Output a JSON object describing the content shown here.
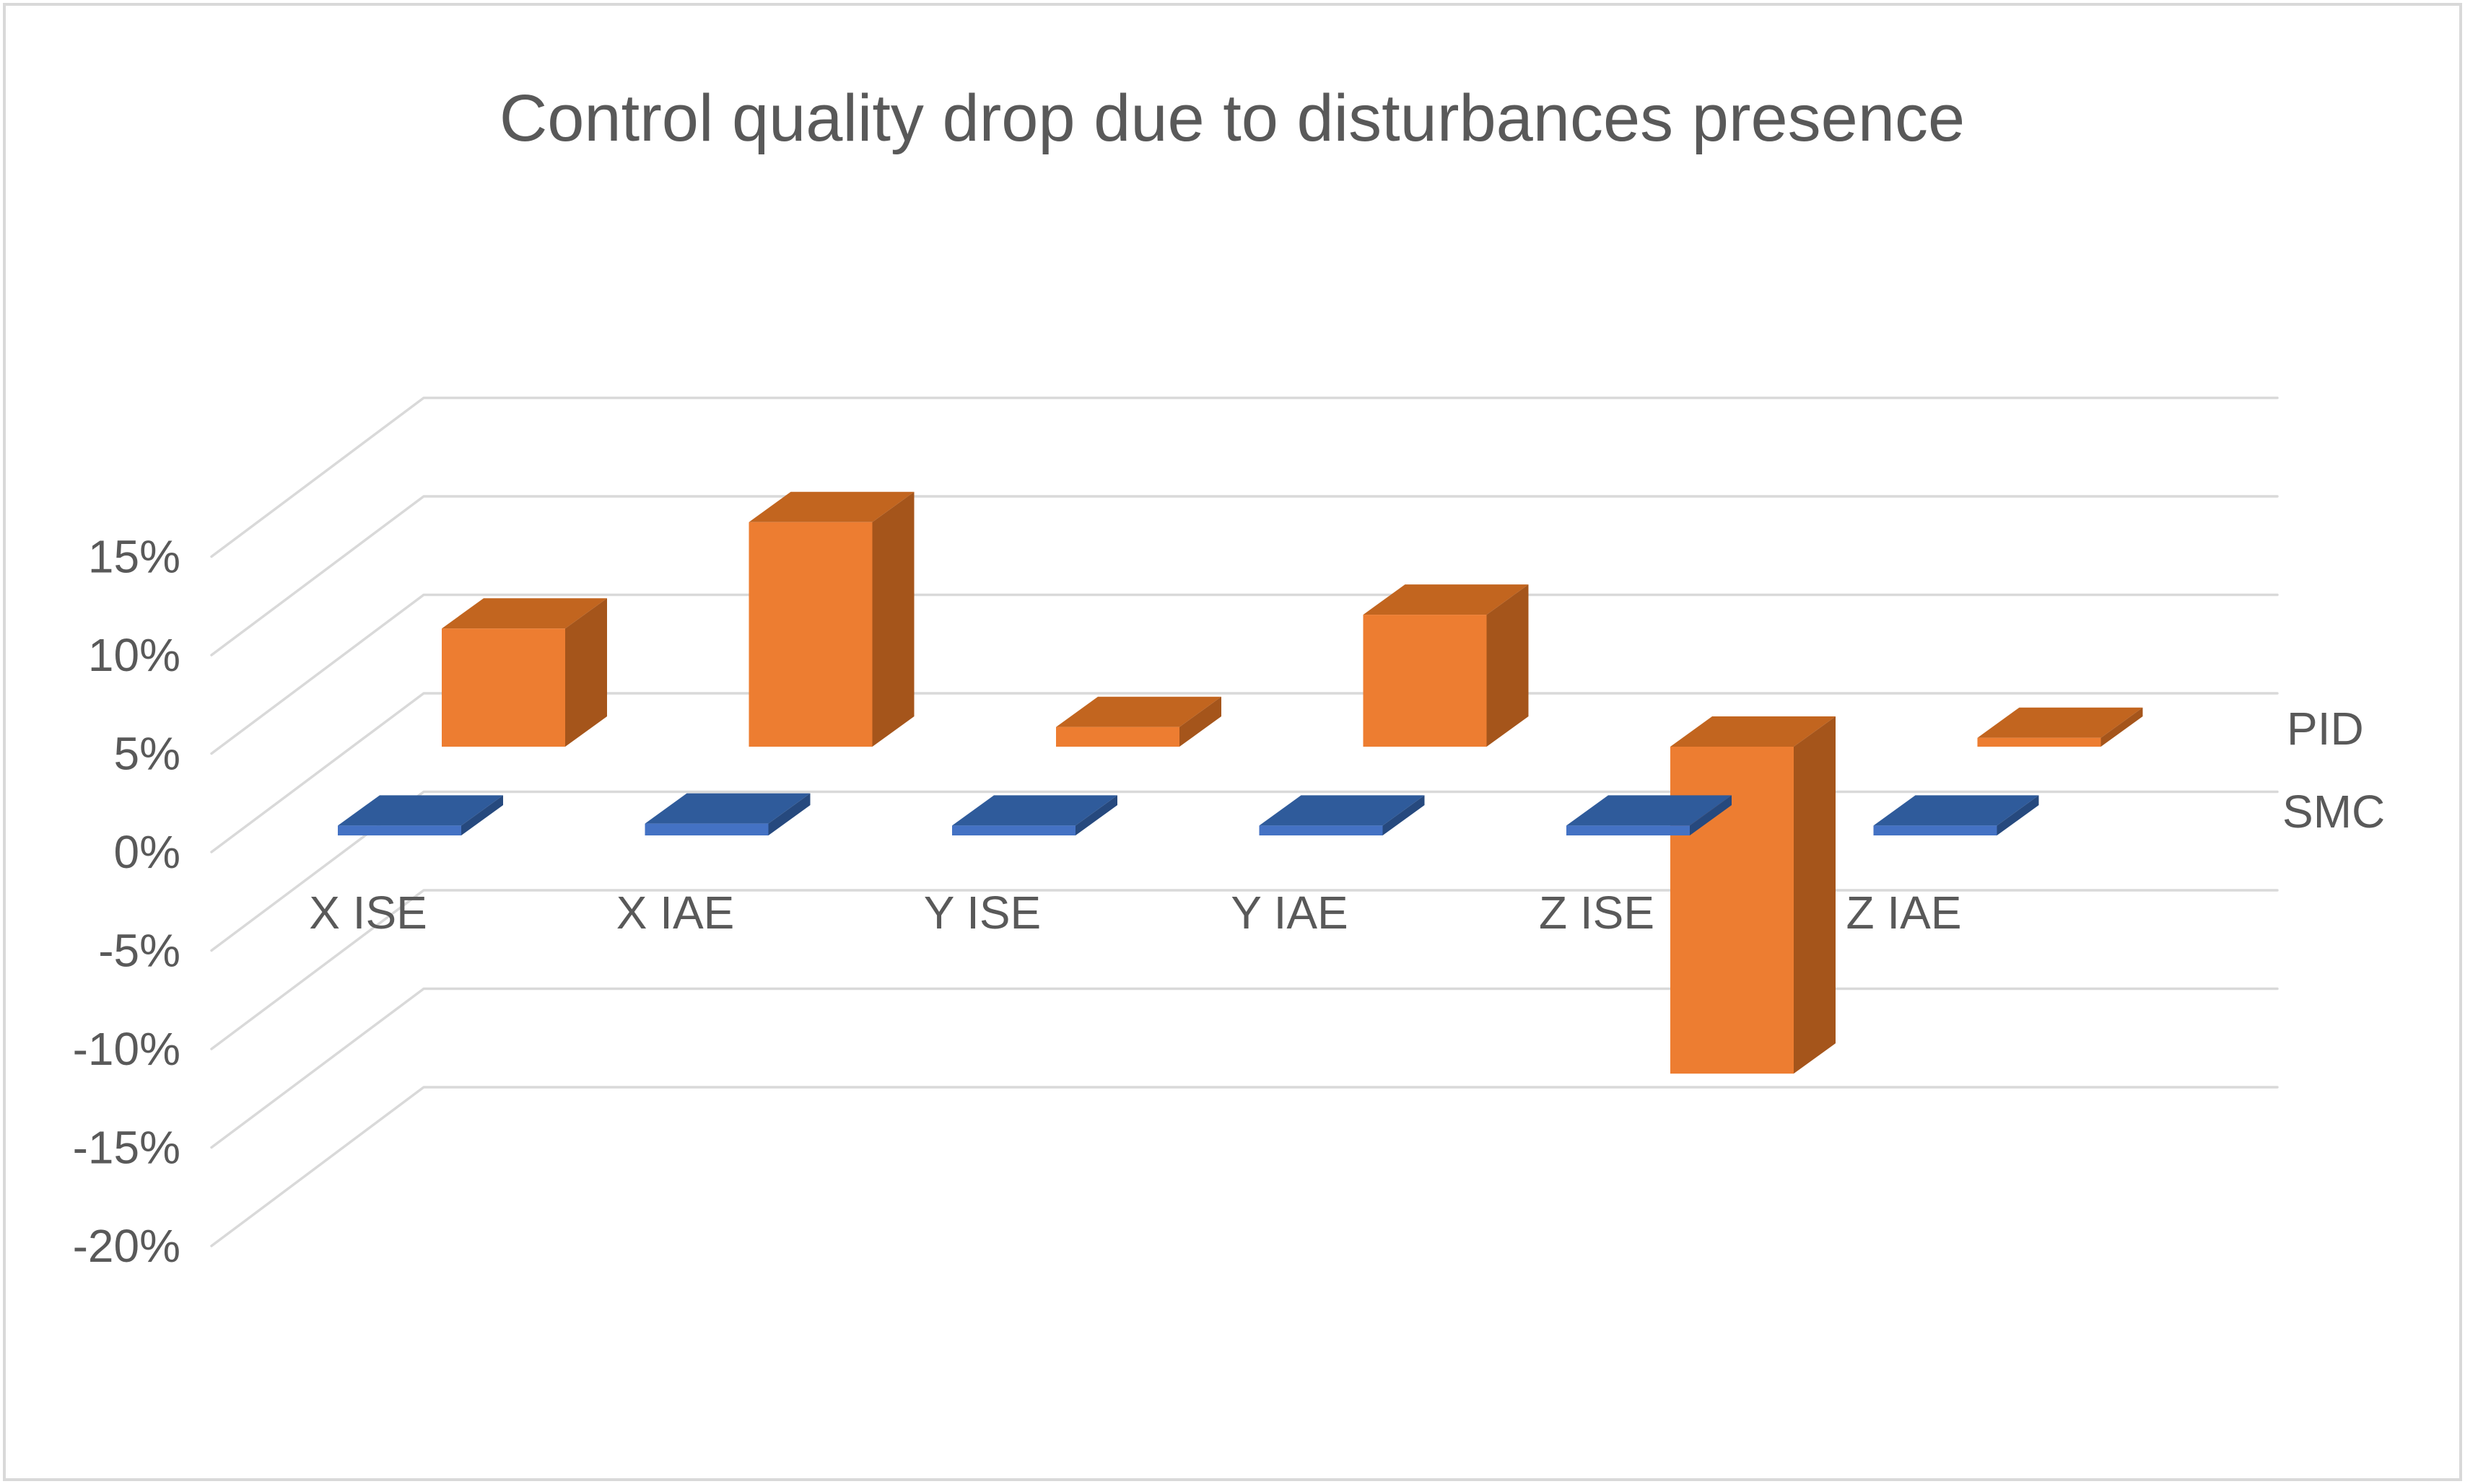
{
  "title": "Control quality drop due to disturbances presence",
  "chart_data": {
    "type": "bar",
    "subtype": "3d-column",
    "title": "Control quality drop due to disturbances presence",
    "categories": [
      "X ISE",
      "X IAE",
      "Y ISE",
      "Y IAE",
      "Z ISE",
      "Z IAE"
    ],
    "series": [
      {
        "name": "SMC",
        "color": "#4472C4",
        "values_pct": [
          0.5,
          0.6,
          0.5,
          0.5,
          0.5,
          0.5
        ]
      },
      {
        "name": "PID",
        "color": "#ED7D31",
        "values_pct": [
          6.0,
          11.4,
          1.0,
          6.7,
          -16.6,
          0.45
        ]
      }
    ],
    "y_tick_labels": [
      "15%",
      "10%",
      "5%",
      "0%",
      "-5%",
      "-10%",
      "-15%",
      "-20%"
    ],
    "y_tick_values": [
      15,
      10,
      5,
      0,
      -5,
      -10,
      -15,
      -20
    ],
    "ylim": [
      -20,
      15
    ],
    "y_unit": "%",
    "grid": true,
    "legend_position": "right",
    "series_label_order_top_to_bottom": [
      "PID",
      "SMC"
    ]
  },
  "palette": {
    "smc_front": "#4472C4",
    "smc_top": "#2F5B9B",
    "smc_side": "#26497E",
    "pid_front": "#ED7D31",
    "pid_top": "#C2651F",
    "pid_side": "#A5551B",
    "gridline": "#D9D9D9",
    "text": "#595959",
    "border": "#D9D9D9",
    "background": "#FFFFFF"
  }
}
